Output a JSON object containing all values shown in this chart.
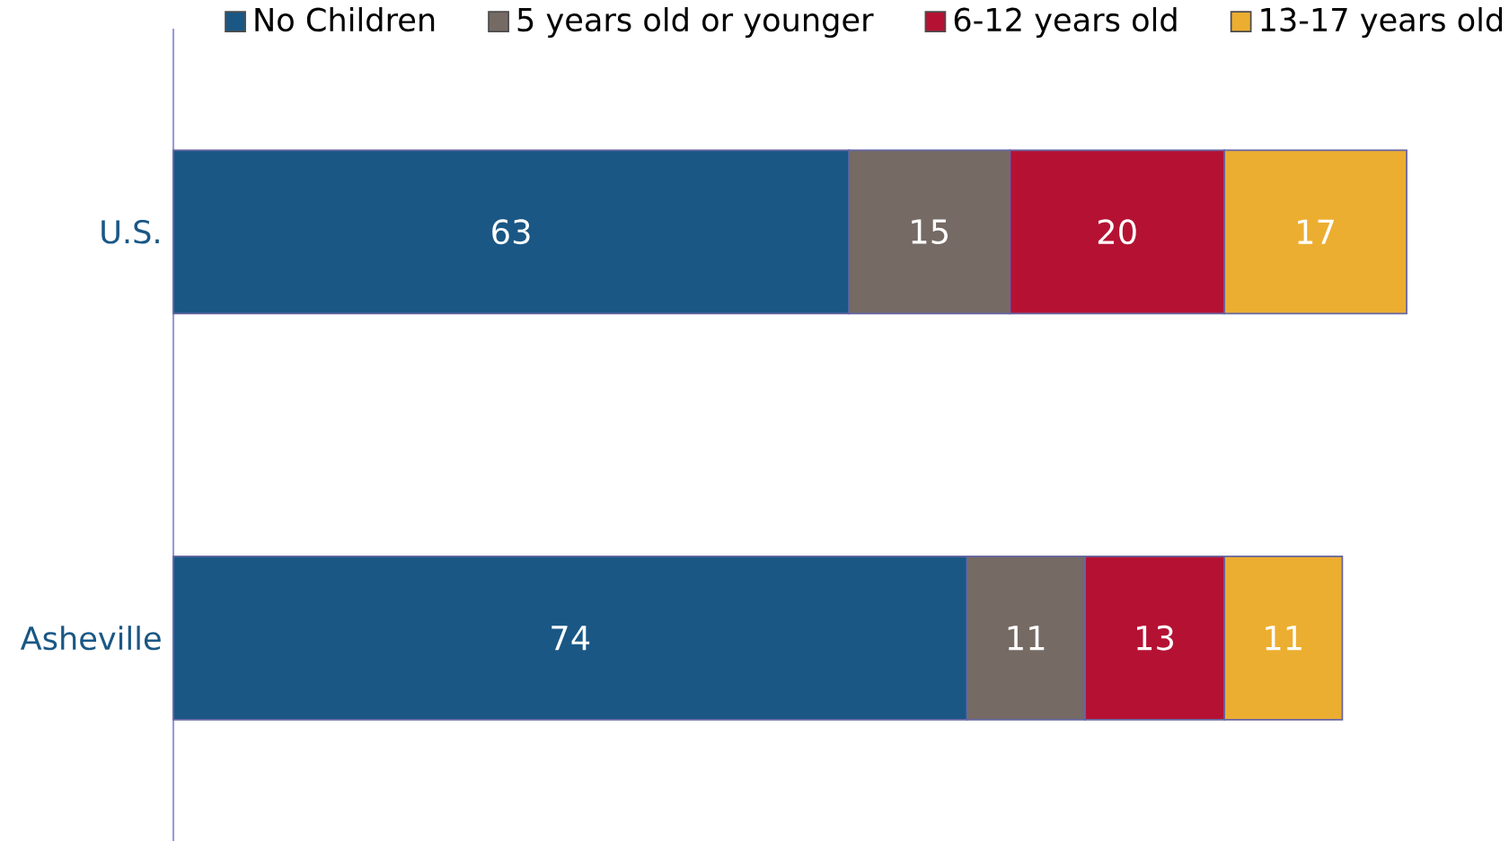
{
  "chart_data": {
    "type": "bar",
    "orientation": "horizontal",
    "stacked": true,
    "data_labels": true,
    "legend": "top",
    "categories": [
      "U.S.",
      "Asheville"
    ],
    "series": [
      {
        "name": "No Children",
        "color": "#1a5785",
        "values": [
          63,
          74
        ]
      },
      {
        "name": "5 years old or younger",
        "color": "#756a64",
        "values": [
          15,
          11
        ]
      },
      {
        "name": "6-12 years old",
        "color": "#b51233",
        "values": [
          20,
          13
        ]
      },
      {
        "name": "13-17 years old",
        "color": "#ecae31",
        "values": [
          17,
          11
        ]
      }
    ]
  }
}
